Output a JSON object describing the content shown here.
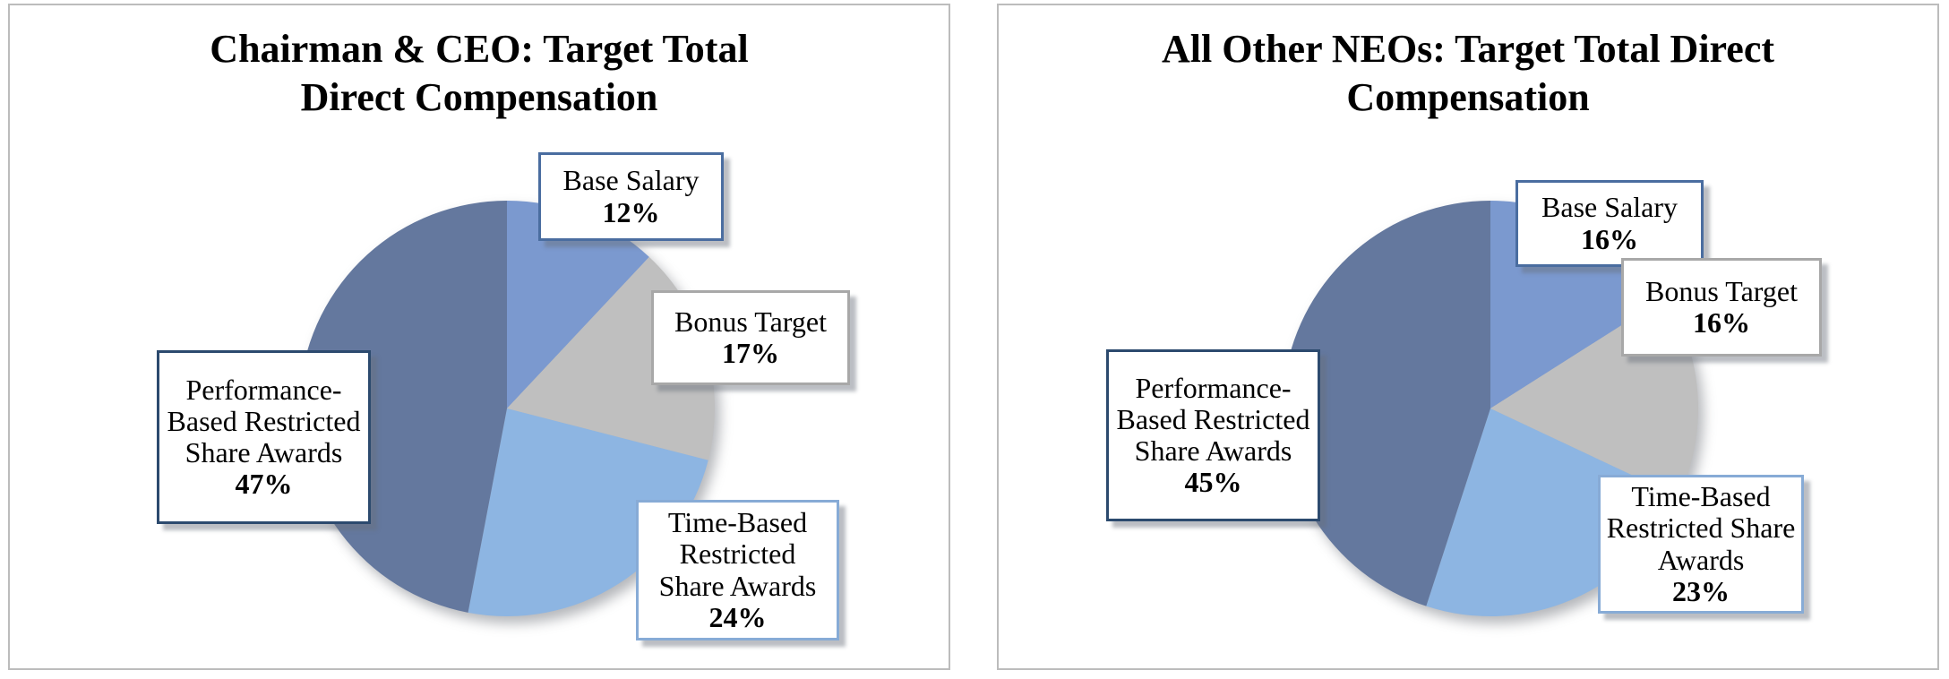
{
  "chart_data": [
    {
      "type": "pie",
      "title": "Chairman & CEO: Target Total Direct Compensation",
      "start_angle": "12-oclock",
      "direction": "clockwise",
      "legend_position": "none",
      "slices": [
        {
          "label": "Base Salary",
          "pct_label": "12%",
          "value": 12,
          "color": "#7b99cf",
          "box_border": "#4a6da0"
        },
        {
          "label": "Bonus Target",
          "pct_label": "17%",
          "value": 17,
          "color": "#bfbfbf",
          "box_border": "#a8a8a8"
        },
        {
          "label": "Time-Based Restricted Share Awards",
          "pct_label": "24%",
          "value": 24,
          "color": "#8db5e2",
          "box_border": "#87abd6"
        },
        {
          "label": "Performance-Based Restricted Share Awards",
          "pct_label": "47%",
          "value": 47,
          "color": "#64789e",
          "box_border": "#2c4a6e"
        }
      ]
    },
    {
      "type": "pie",
      "title": "All Other NEOs: Target Total Direct Compensation",
      "start_angle": "12-oclock",
      "direction": "clockwise",
      "legend_position": "none",
      "slices": [
        {
          "label": "Base Salary",
          "pct_label": "16%",
          "value": 16,
          "color": "#7b99cf",
          "box_border": "#4a6da0"
        },
        {
          "label": "Bonus Target",
          "pct_label": "16%",
          "value": 16,
          "color": "#bfbfbf",
          "box_border": "#a8a8a8"
        },
        {
          "label": "Time-Based Restricted Share Awards",
          "pct_label": "23%",
          "value": 23,
          "color": "#8db5e2",
          "box_border": "#87abd6"
        },
        {
          "label": "Performance-Based Restricted Share Awards",
          "pct_label": "45%",
          "value": 45,
          "color": "#64789e",
          "box_border": "#2c4a6e"
        }
      ]
    }
  ]
}
